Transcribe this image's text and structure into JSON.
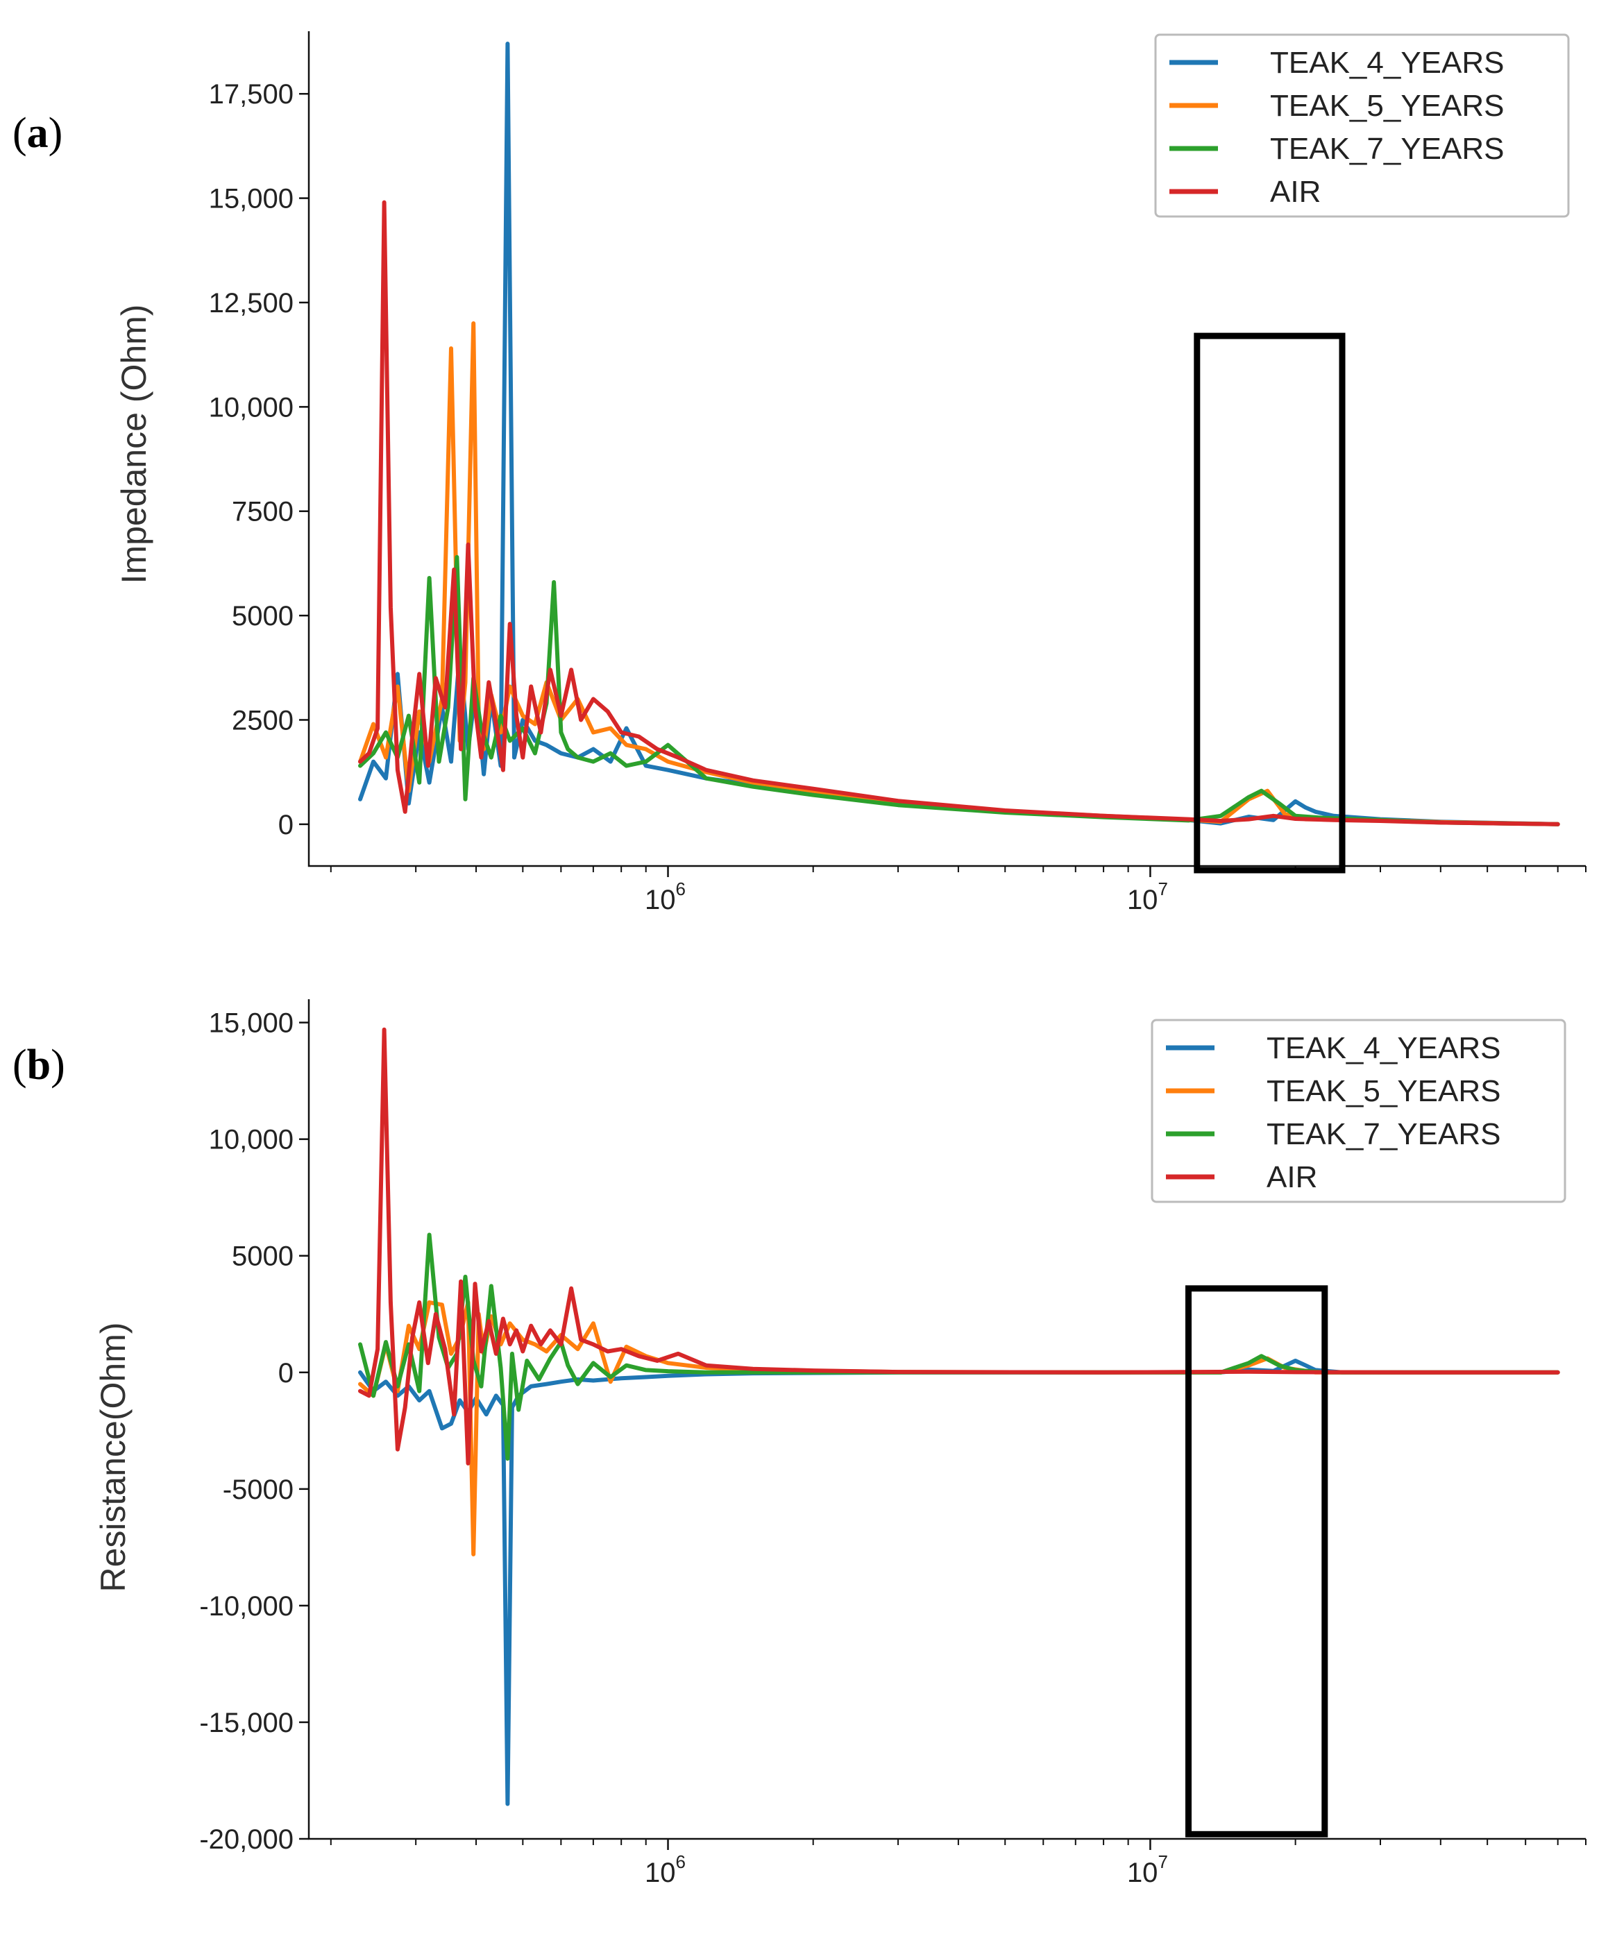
{
  "colors": {
    "TEAK_4_YEARS": "#1f77b4",
    "TEAK_5_YEARS": "#ff7f0e",
    "TEAK_7_YEARS": "#2ca02c",
    "AIR": "#d62728"
  },
  "chart_data": [
    {
      "type": "line",
      "panel_label_open": "(",
      "panel_label_letter": "a",
      "panel_label_close": ")",
      "ylabel": "Impedance (Ohm)",
      "xscale": "log",
      "xlim": [
        180000,
        80000000
      ],
      "ylim": [
        -1000,
        19000
      ],
      "x_ticks": [
        {
          "base": "10",
          "exp": "6"
        },
        {
          "base": "10",
          "exp": "7"
        }
      ],
      "y_ticks": [
        {
          "value": 0,
          "label": "0"
        },
        {
          "value": 2500,
          "label": "2500"
        },
        {
          "value": 5000,
          "label": "5000"
        },
        {
          "value": 7500,
          "label": "7500"
        },
        {
          "value": 10000,
          "label": "10,000"
        },
        {
          "value": 12500,
          "label": "12,500"
        },
        {
          "value": 15000,
          "label": "15,000"
        },
        {
          "value": 17500,
          "label": "17,500"
        }
      ],
      "legend": [
        "TEAK_4_YEARS",
        "TEAK_5_YEARS",
        "TEAK_7_YEARS",
        "AIR"
      ],
      "highlight_region": {
        "x_range": [
          12500000,
          25000000
        ],
        "y_range": [
          -1100,
          11700
        ]
      },
      "series": [
        {
          "name": "TEAK_4_YEARS",
          "x": [
            230000,
            245000,
            260000,
            275000,
            290000,
            305000,
            320000,
            340000,
            355000,
            370000,
            385000,
            400000,
            415000,
            430000,
            450000,
            465000,
            480000,
            500000,
            530000,
            560000,
            600000,
            650000,
            700000,
            760000,
            820000,
            900000,
            1000000,
            1200000,
            1500000,
            2000000,
            3000000,
            5000000,
            8000000,
            12000000,
            14000000,
            16000000,
            18000000,
            20000000,
            21000000,
            22000000,
            24000000,
            30000000,
            40000000,
            70000000
          ],
          "values": [
            600,
            1500,
            1100,
            3600,
            500,
            2200,
            1000,
            2800,
            1500,
            4100,
            1800,
            3300,
            1200,
            3000,
            1400,
            18700,
            1600,
            2500,
            2000,
            1900,
            1700,
            1600,
            1800,
            1500,
            2300,
            1400,
            1300,
            1100,
            950,
            750,
            500,
            300,
            180,
            100,
            20,
            180,
            100,
            550,
            400,
            300,
            200,
            120,
            60,
            0
          ]
        },
        {
          "name": "TEAK_5_YEARS",
          "x": [
            230000,
            245000,
            260000,
            275000,
            290000,
            305000,
            320000,
            340000,
            355000,
            370000,
            380000,
            395000,
            405000,
            415000,
            430000,
            450000,
            470000,
            500000,
            530000,
            560000,
            600000,
            650000,
            700000,
            760000,
            820000,
            900000,
            1000000,
            1200000,
            1500000,
            2000000,
            3000000,
            5000000,
            8000000,
            12000000,
            14000000,
            16000000,
            17500000,
            19000000,
            21000000,
            24000000,
            30000000,
            40000000,
            70000000
          ],
          "values": [
            1500,
            2400,
            1600,
            3300,
            800,
            2700,
            1500,
            3000,
            11400,
            2000,
            3400,
            12000,
            2600,
            1800,
            3100,
            2200,
            3300,
            2600,
            2400,
            3400,
            2500,
            3000,
            2200,
            2300,
            1900,
            1800,
            1500,
            1250,
            1000,
            800,
            520,
            320,
            200,
            110,
            60,
            600,
            800,
            250,
            120,
            120,
            100,
            50,
            0
          ]
        },
        {
          "name": "TEAK_7_YEARS",
          "x": [
            230000,
            245000,
            260000,
            275000,
            290000,
            305000,
            320000,
            335000,
            350000,
            365000,
            380000,
            395000,
            410000,
            430000,
            450000,
            470000,
            500000,
            530000,
            560000,
            580000,
            600000,
            620000,
            650000,
            700000,
            760000,
            820000,
            900000,
            1000000,
            1200000,
            1500000,
            2000000,
            3000000,
            5000000,
            8000000,
            12000000,
            14000000,
            16000000,
            17000000,
            18500000,
            20000000,
            23000000,
            30000000,
            40000000,
            70000000
          ],
          "values": [
            1400,
            1700,
            2200,
            1600,
            2600,
            1000,
            5900,
            1500,
            2800,
            6400,
            600,
            3500,
            2300,
            1600,
            2600,
            2000,
            2300,
            1700,
            2900,
            5800,
            2200,
            1800,
            1600,
            1500,
            1700,
            1400,
            1500,
            1900,
            1100,
            900,
            700,
            460,
            280,
            170,
            90,
            200,
            650,
            800,
            500,
            200,
            150,
            100,
            40,
            0
          ]
        },
        {
          "name": "AIR",
          "x": [
            230000,
            240000,
            250000,
            258000,
            266000,
            275000,
            285000,
            295000,
            305000,
            318000,
            330000,
            345000,
            360000,
            372000,
            385000,
            398000,
            410000,
            425000,
            440000,
            455000,
            470000,
            485000,
            500000,
            520000,
            545000,
            570000,
            600000,
            630000,
            660000,
            700000,
            750000,
            800000,
            870000,
            950000,
            1050000,
            1200000,
            1500000,
            2000000,
            3000000,
            5000000,
            8000000,
            12000000,
            14000000,
            16000000,
            18000000,
            20000000,
            24000000,
            30000000,
            40000000,
            70000000
          ],
          "values": [
            1500,
            1700,
            2300,
            14900,
            5200,
            1300,
            300,
            2100,
            3600,
            1400,
            3500,
            2800,
            6100,
            1800,
            6700,
            2800,
            1600,
            3400,
            2400,
            1300,
            4800,
            2600,
            1600,
            3300,
            2200,
            3700,
            2600,
            3700,
            2500,
            3000,
            2700,
            2200,
            2100,
            1800,
            1600,
            1300,
            1050,
            850,
            560,
            330,
            200,
            120,
            80,
            120,
            200,
            130,
            100,
            80,
            40,
            0
          ]
        }
      ]
    },
    {
      "type": "line",
      "panel_label_open": "(",
      "panel_label_letter": "b",
      "panel_label_close": ")",
      "ylabel": "Resistance(Ohm)",
      "xscale": "log",
      "xlim": [
        180000,
        80000000
      ],
      "ylim": [
        -20000,
        16000
      ],
      "x_ticks": [
        {
          "base": "10",
          "exp": "6"
        },
        {
          "base": "10",
          "exp": "7"
        }
      ],
      "y_ticks": [
        {
          "value": -20000,
          "label": "-20,000"
        },
        {
          "value": -15000,
          "label": "-15,000"
        },
        {
          "value": -10000,
          "label": "-10,000"
        },
        {
          "value": -5000,
          "label": "-5000"
        },
        {
          "value": 0,
          "label": "0"
        },
        {
          "value": 5000,
          "label": "5000"
        },
        {
          "value": 10000,
          "label": "10,000"
        },
        {
          "value": 15000,
          "label": "15,000"
        }
      ],
      "legend": [
        "TEAK_4_YEARS",
        "TEAK_5_YEARS",
        "TEAK_7_YEARS",
        "AIR"
      ],
      "highlight_region": {
        "x_range": [
          12000000,
          23000000
        ],
        "y_range": [
          -19800,
          3600
        ]
      },
      "series": [
        {
          "name": "TEAK_4_YEARS",
          "x": [
            230000,
            245000,
            260000,
            275000,
            290000,
            305000,
            320000,
            340000,
            355000,
            370000,
            385000,
            400000,
            420000,
            440000,
            455000,
            465000,
            475000,
            490000,
            520000,
            560000,
            600000,
            650000,
            700000,
            800000,
            900000,
            1000000,
            1200000,
            1500000,
            3000000,
            8000000,
            14000000,
            16000000,
            18000000,
            20000000,
            21000000,
            22000000,
            25000000,
            40000000,
            70000000
          ],
          "values": [
            0,
            -800,
            -400,
            -1000,
            -600,
            -1200,
            -800,
            -2400,
            -2200,
            -1200,
            -1700,
            -1100,
            -1800,
            -1000,
            -1400,
            -18500,
            -1500,
            -1000,
            -600,
            -500,
            -400,
            -300,
            -350,
            -250,
            -200,
            -150,
            -80,
            -40,
            0,
            0,
            0,
            120,
            60,
            500,
            300,
            100,
            0,
            0,
            0
          ]
        },
        {
          "name": "TEAK_5_YEARS",
          "x": [
            230000,
            245000,
            260000,
            275000,
            290000,
            305000,
            320000,
            340000,
            355000,
            370000,
            385000,
            395000,
            405000,
            415000,
            430000,
            450000,
            470000,
            500000,
            530000,
            560000,
            600000,
            650000,
            700000,
            760000,
            820000,
            900000,
            1000000,
            1200000,
            1500000,
            3000000,
            8000000,
            14000000,
            16000000,
            17500000,
            19000000,
            22000000,
            40000000,
            70000000
          ],
          "values": [
            -500,
            -1000,
            1200,
            -800,
            2000,
            1000,
            3000,
            2900,
            800,
            1500,
            3000,
            -7800,
            2500,
            800,
            2400,
            1200,
            2100,
            1400,
            1200,
            900,
            1600,
            1000,
            2100,
            -400,
            1100,
            700,
            400,
            200,
            100,
            20,
            0,
            0,
            300,
            600,
            200,
            0,
            0,
            0
          ]
        },
        {
          "name": "TEAK_7_YEARS",
          "x": [
            230000,
            245000,
            260000,
            275000,
            290000,
            305000,
            320000,
            335000,
            350000,
            365000,
            380000,
            395000,
            410000,
            430000,
            450000,
            465000,
            475000,
            490000,
            510000,
            540000,
            570000,
            600000,
            620000,
            650000,
            700000,
            760000,
            820000,
            900000,
            1000000,
            1200000,
            1500000,
            3000000,
            8000000,
            14000000,
            16000000,
            17000000,
            18500000,
            20000000,
            23000000,
            40000000,
            70000000
          ],
          "values": [
            1200,
            -1000,
            1300,
            -600,
            1200,
            -800,
            5900,
            1500,
            200,
            800,
            4100,
            500,
            -600,
            3700,
            200,
            -3700,
            800,
            -1600,
            500,
            -300,
            600,
            1300,
            300,
            -500,
            400,
            -200,
            300,
            100,
            50,
            0,
            0,
            0,
            0,
            0,
            400,
            700,
            300,
            100,
            0,
            0,
            0
          ]
        },
        {
          "name": "AIR",
          "x": [
            230000,
            240000,
            250000,
            258000,
            266000,
            275000,
            285000,
            295000,
            305000,
            318000,
            330000,
            345000,
            360000,
            372000,
            385000,
            398000,
            410000,
            425000,
            440000,
            455000,
            470000,
            485000,
            500000,
            520000,
            545000,
            570000,
            600000,
            630000,
            660000,
            700000,
            750000,
            800000,
            870000,
            950000,
            1050000,
            1200000,
            1500000,
            2000000,
            3000000,
            8000000,
            16000000,
            20000000,
            40000000,
            70000000
          ],
          "values": [
            -800,
            -1000,
            1000,
            14700,
            3000,
            -3300,
            -1500,
            1500,
            3000,
            400,
            2500,
            1000,
            -1800,
            3900,
            -3900,
            3800,
            900,
            2200,
            800,
            2300,
            1200,
            1800,
            900,
            2000,
            1200,
            1800,
            1200,
            3600,
            1400,
            1200,
            900,
            1000,
            700,
            500,
            800,
            300,
            150,
            80,
            20,
            0,
            30,
            10,
            0,
            0
          ]
        }
      ]
    }
  ]
}
